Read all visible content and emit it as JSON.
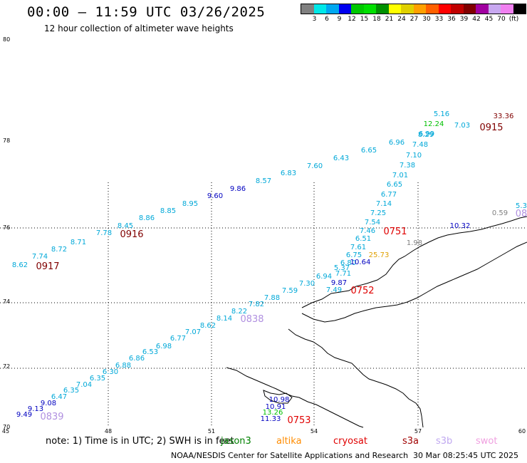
{
  "header": {
    "title": "00:00 – 11:59 UTC 03/26/2025",
    "subtitle": "12 hour collection of altimeter wave heights"
  },
  "scale": {
    "unit": "(ft)",
    "colors": [
      "#808080",
      "#00e8e8",
      "#00a8f0",
      "#0000f0",
      "#00c800",
      "#00e000",
      "#009000",
      "#ffff00",
      "#e0d000",
      "#ffa000",
      "#ff6000",
      "#ff0000",
      "#c00000",
      "#800000",
      "#a000a0",
      "#c8a8f0",
      "#f080f0",
      "#000000"
    ],
    "labels": [
      "3",
      "6",
      "9",
      "12",
      "15",
      "18",
      "21",
      "24",
      "27",
      "30",
      "33",
      "36",
      "39",
      "42",
      "45",
      "70"
    ]
  },
  "axes": {
    "y_labels": [
      "80",
      "78",
      "76",
      "74",
      "72",
      "70"
    ],
    "x_labels": [
      "45",
      "48",
      "51",
      "54",
      "57",
      "60"
    ]
  },
  "tracks": [
    {
      "color": "#00a8d8",
      "value": "8.62"
    },
    {
      "color": "#00a8d8",
      "value": "7.74"
    },
    {
      "color": "#00a8d8",
      "value": "8.72"
    },
    {
      "color": "#00a8d8",
      "value": "8.71"
    },
    {
      "color": "#00a8d8",
      "value": "7.78"
    },
    {
      "color": "#00a8d8",
      "value": "8.45"
    },
    {
      "color": "#00a8d8",
      "value": "8.86"
    },
    {
      "color": "#00a8d8",
      "value": "8.85"
    },
    {
      "color": "#00a8d8",
      "value": "8.95"
    },
    {
      "color": "#0000c0",
      "value": "9.60"
    },
    {
      "color": "#0000c0",
      "value": "9.86"
    },
    {
      "color": "#00a8d8",
      "value": "8.57"
    },
    {
      "color": "#00a8d8",
      "value": "6.83"
    },
    {
      "color": "#00a8d8",
      "value": "7.60"
    },
    {
      "color": "#00a8d8",
      "value": "6.43"
    },
    {
      "color": "#00a8d8",
      "value": "6.65"
    },
    {
      "color": "#00a8d8",
      "value": "6.96"
    },
    {
      "color": "#00a8d8",
      "value": "5.16"
    },
    {
      "color": "#00a8d8",
      "value": "7.03"
    },
    {
      "color": "#00a8d8",
      "value": "7.48"
    },
    {
      "color": "#00a8d8",
      "value": "6.99"
    },
    {
      "color": "#00a8d8",
      "value": "7.10"
    },
    {
      "color": "#00a8d8",
      "value": "7.38"
    },
    {
      "color": "#00a8d8",
      "value": "7.01"
    },
    {
      "color": "#00a8d8",
      "value": "6.65"
    },
    {
      "color": "#00a8d8",
      "value": "6.77"
    },
    {
      "color": "#00a8d8",
      "value": "7.14"
    },
    {
      "color": "#00a8d8",
      "value": "7.25"
    },
    {
      "color": "#00a8d8",
      "value": "7.54"
    },
    {
      "color": "#00a8d8",
      "value": "7.46"
    },
    {
      "color": "#00a8d8",
      "value": "6.51"
    },
    {
      "color": "#00a8d8",
      "value": "7.61"
    },
    {
      "color": "#00a8d8",
      "value": "6.75"
    },
    {
      "color": "#00a8d8",
      "value": "6.80"
    },
    {
      "color": "#00a8d8",
      "value": "5.37"
    },
    {
      "color": "#00a8d8",
      "value": "7.71"
    },
    {
      "color": "#00a8d8",
      "value": "6.94"
    },
    {
      "color": "#00a8d8",
      "value": "7.30"
    },
    {
      "color": "#00a8d8",
      "value": "7.49"
    },
    {
      "color": "#00a8d8",
      "value": "7.59"
    },
    {
      "color": "#00a8d8",
      "value": "7.88"
    },
    {
      "color": "#00a8d8",
      "value": "7.82"
    },
    {
      "color": "#00a8d8",
      "value": "8.14"
    },
    {
      "color": "#00a8d8",
      "value": "8.62"
    },
    {
      "color": "#00a8d8",
      "value": "7.07"
    },
    {
      "color": "#00a8d8",
      "value": "6.77"
    },
    {
      "color": "#00a8d8",
      "value": "6.98"
    },
    {
      "color": "#00a8d8",
      "value": "6.53"
    },
    {
      "color": "#00a8d8",
      "value": "6.86"
    },
    {
      "color": "#00a8d8",
      "value": "6.88"
    },
    {
      "color": "#00a8d8",
      "value": "6.30"
    },
    {
      "color": "#00a8d8",
      "value": "6.35"
    },
    {
      "color": "#00a8d8",
      "value": "7.04"
    },
    {
      "color": "#00a8d8",
      "value": "6.35"
    },
    {
      "color": "#00a8d8",
      "value": "6.47"
    },
    {
      "color": "#0000c0",
      "value": "9.08"
    },
    {
      "color": "#0000c0",
      "value": "9.13"
    },
    {
      "color": "#0000c0",
      "value": "9.49"
    },
    {
      "color": "#0000c0",
      "value": "10.64"
    },
    {
      "color": "#0000c0",
      "value": "9.87"
    },
    {
      "color": "#0000c0",
      "value": "10.32"
    },
    {
      "color": "#0000c0",
      "value": "10.98"
    },
    {
      "color": "#0000c0",
      "value": "10.91"
    },
    {
      "color": "#0000c0",
      "value": "11.33"
    },
    {
      "color": "#00c000",
      "value": "12.24"
    },
    {
      "color": "#00c000",
      "value": "13.26"
    },
    {
      "color": "#e0a000",
      "value": "25.73"
    },
    {
      "color": "#800000",
      "value": "33.36"
    },
    {
      "color": "#808080",
      "value": "1.98"
    },
    {
      "color": "#808080",
      "value": "0.59"
    },
    {
      "color": "#00a8d8",
      "value": "5.3"
    },
    {
      "color": "#00a8d8",
      "value": "8.29"
    },
    {
      "color": "#00a8d8",
      "value": "8.22"
    }
  ],
  "pass_times": [
    {
      "color": "#800000",
      "value": "0917"
    },
    {
      "color": "#800000",
      "value": "0916"
    },
    {
      "color": "#800000",
      "value": "0915"
    },
    {
      "color": "#e00000",
      "value": "0751"
    },
    {
      "color": "#e00000",
      "value": "0752"
    },
    {
      "color": "#e00000",
      "value": "0753"
    },
    {
      "color": "#b090e0",
      "value": "0838"
    },
    {
      "color": "#b090e0",
      "value": "0839"
    },
    {
      "color": "#b090e0",
      "value": "08"
    }
  ],
  "footer": {
    "note": "note:  1) Time is in UTC;  2) SWH is in feet",
    "legend": [
      {
        "label": "jason3",
        "color": "#008000"
      },
      {
        "label": "altika",
        "color": "#ff8c00"
      },
      {
        "label": "cryosat",
        "color": "#e00000"
      },
      {
        "label": "s3a",
        "color": "#a00000"
      },
      {
        "label": "s3b",
        "color": "#c0a8f0"
      },
      {
        "label": "swot",
        "color": "#f0a0e0"
      }
    ],
    "credit": "NOAA/NESDIS Center for Satellite Applications and Research",
    "timestamp": "30 Mar 08:25:45 UTC 2025"
  }
}
